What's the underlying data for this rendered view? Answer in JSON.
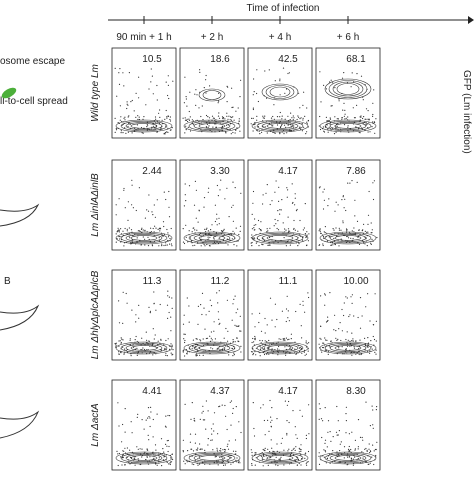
{
  "header": {
    "title": "Time of infection",
    "columns": [
      "90 min + 1 h",
      "+ 2 h",
      "+ 4 h",
      "+ 6 h"
    ]
  },
  "left_labels": [
    "osome escape",
    "ll-to-cell spread",
    "B"
  ],
  "y_axis_label": "GFP (Lm infection)",
  "rows": [
    {
      "label": "Wild type Lm",
      "values": [
        "10.5",
        "18.6",
        "42.5",
        "68.1"
      ]
    },
    {
      "label": "Lm ΔinlAΔinlB",
      "values": [
        "2.44",
        "3.30",
        "4.17",
        "7.86"
      ]
    },
    {
      "label": "Lm ΔhlyΔplcAΔplcB",
      "values": [
        "11.3",
        "11.2",
        "11.1",
        "10.00"
      ]
    },
    {
      "label": "Lm ΔactA",
      "values": [
        "4.41",
        "4.37",
        "4.17",
        "8.30"
      ]
    }
  ]
}
